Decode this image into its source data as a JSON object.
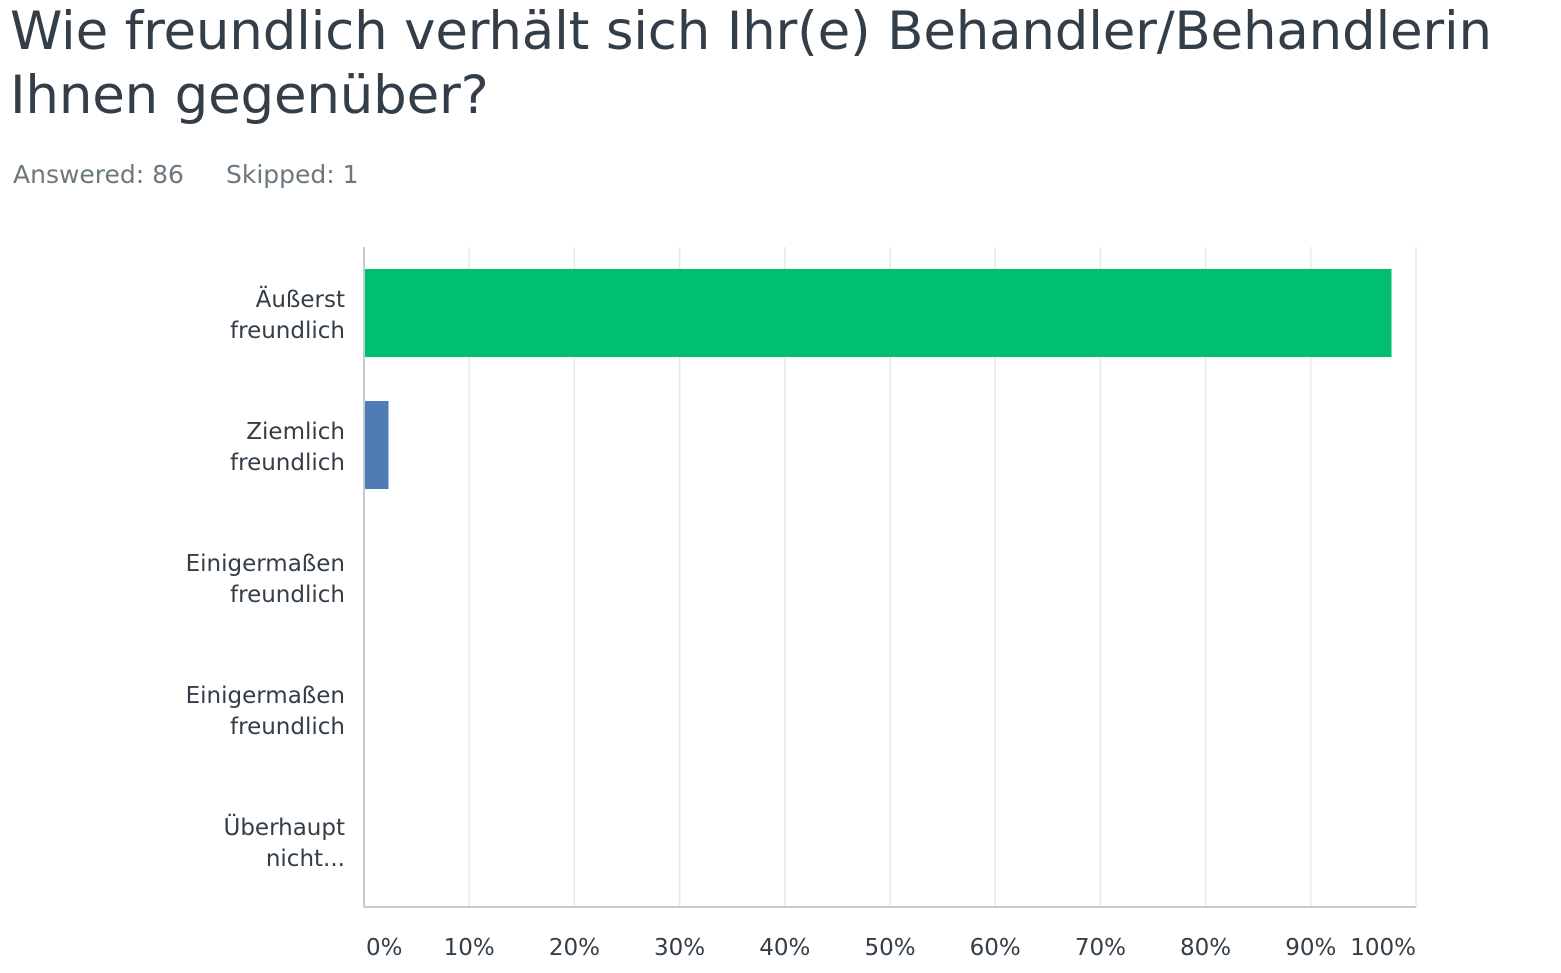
{
  "question": {
    "title": "Wie freundlich verhält sich Ihr(e) Behandler/Behandlerin Ihnen gegenüber?",
    "answered": "Answered: 86",
    "skipped": "Skipped: 1"
  },
  "chart_data": {
    "type": "bar",
    "orientation": "horizontal",
    "categories": [
      [
        "Äußerst",
        "freundlich"
      ],
      [
        "Ziemlich",
        "freundlich"
      ],
      [
        "Einigermaßen",
        "freundlich"
      ],
      [
        "Einigermaßen",
        "freundlich"
      ],
      [
        "Überhaupt",
        "nicht..."
      ]
    ],
    "values": [
      97.67,
      2.33,
      0,
      0,
      0
    ],
    "bar_colors": [
      "#00bf6f",
      "#507cb6",
      "#00bf6f",
      "#00bf6f",
      "#00bf6f"
    ],
    "xlim": [
      0,
      100
    ],
    "x_ticks": [
      "0%",
      "10%",
      "20%",
      "30%",
      "40%",
      "50%",
      "60%",
      "70%",
      "80%",
      "90%",
      "100%"
    ],
    "grid": true
  }
}
